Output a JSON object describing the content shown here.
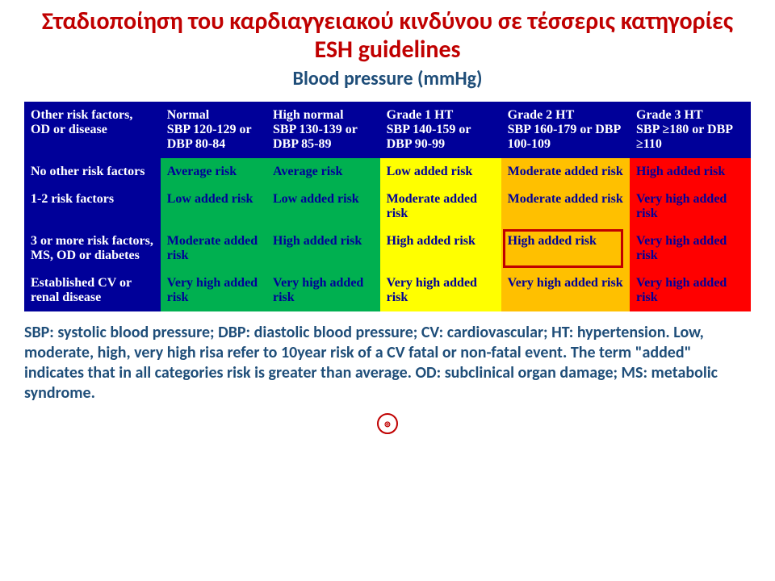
{
  "title_fontsize": 30,
  "subtitle_fontsize": 24,
  "caption_fontsize": 20,
  "colors": {
    "title": "#c00000",
    "subtitle": "#1f4e79",
    "caption": "#1f4e79",
    "header_bg": "#000099",
    "header_text": "#ffffff",
    "green": "#00b050",
    "yellow": "#ffff00",
    "orange": "#ffc000",
    "red": "#ff0000",
    "cell_text": "#000099",
    "highlight_border": "#c00000"
  },
  "title": "Σταδιοποίηση του καρδιαγγειακού κινδύνου σε τέσσερις κατηγορίες ESH guidelines",
  "subtitle": "Blood pressure (mmHg)",
  "table": {
    "header_fontsize": 16,
    "cell_fontsize": 16,
    "col_widths_pct": [
      18,
      14,
      15,
      16,
      17,
      16
    ],
    "columns": [
      "Other risk factors, OD or disease",
      "Normal\nSBP 120-129 or DBP 80-84",
      "High normal\nSBP 130-139 or DBP 85-89",
      "Grade 1 HT\nSBP 140-159 or DBP 90-99",
      "Grade 2 HT\nSBP 160-179 or DBP 100-109",
      "Grade 3 HT\nSBP ≥180 or DBP ≥110"
    ],
    "rows": [
      {
        "label": "No other risk factors",
        "cells": [
          {
            "text": "Average risk",
            "bg": "green"
          },
          {
            "text": "Average risk",
            "bg": "green"
          },
          {
            "text": "Low added risk",
            "bg": "yellow"
          },
          {
            "text": "Moderate added risk",
            "bg": "orange"
          },
          {
            "text": "High added risk",
            "bg": "red"
          }
        ]
      },
      {
        "label": "1-2 risk factors",
        "cells": [
          {
            "text": "Low added risk",
            "bg": "green"
          },
          {
            "text": "Low added risk",
            "bg": "green"
          },
          {
            "text": "Moderate added risk",
            "bg": "yellow"
          },
          {
            "text": "Moderate added risk",
            "bg": "orange"
          },
          {
            "text": "Very high added risk",
            "bg": "red"
          }
        ]
      },
      {
        "label": "3 or more risk factors, MS, OD or diabetes",
        "cells": [
          {
            "text": "Moderate added risk",
            "bg": "green"
          },
          {
            "text": "High added risk",
            "bg": "green"
          },
          {
            "text": "High added risk",
            "bg": "yellow"
          },
          {
            "text": "High added risk",
            "bg": "orange",
            "highlight": true
          },
          {
            "text": "Very high added risk",
            "bg": "red"
          }
        ]
      },
      {
        "label": "Established CV or renal disease",
        "cells": [
          {
            "text": "Very high added risk",
            "bg": "green"
          },
          {
            "text": "Very high added risk",
            "bg": "green"
          },
          {
            "text": "Very high added risk",
            "bg": "yellow"
          },
          {
            "text": "Very high added risk",
            "bg": "orange"
          },
          {
            "text": "Very high added risk",
            "bg": "red"
          }
        ]
      }
    ]
  },
  "caption": "SBP: systolic blood pressure; DBP: diastolic blood pressure; CV: cardiovascular; HT: hypertension. Low, moderate, high, very high risa refer to 10year risk of a CV fatal or non-fatal event. The term \"added\" indicates that in all categories risk is greater than average. OD: subclinical organ damage; MS: metabolic syndrome.",
  "logo_text": "⊚"
}
